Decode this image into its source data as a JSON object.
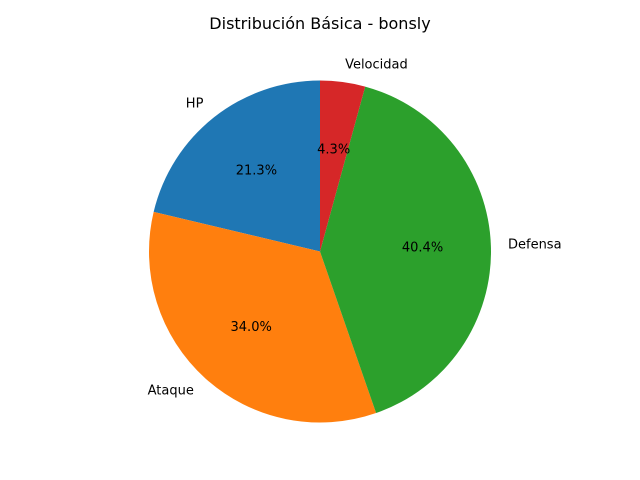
{
  "chart_data": {
    "type": "pie",
    "title": "Distribución Básica - bonsly",
    "categories": [
      "HP",
      "Ataque",
      "Defensa",
      "Velocidad"
    ],
    "values": [
      50,
      80,
      95,
      10
    ],
    "percent_labels": [
      "21.3%",
      "34.0%",
      "40.4%",
      "4.3%"
    ],
    "colors": [
      "#1f77b4",
      "#ff7f0e",
      "#2ca02c",
      "#d62728"
    ],
    "start_angle_deg": 90,
    "direction": "counterclockwise",
    "legend": "none"
  }
}
